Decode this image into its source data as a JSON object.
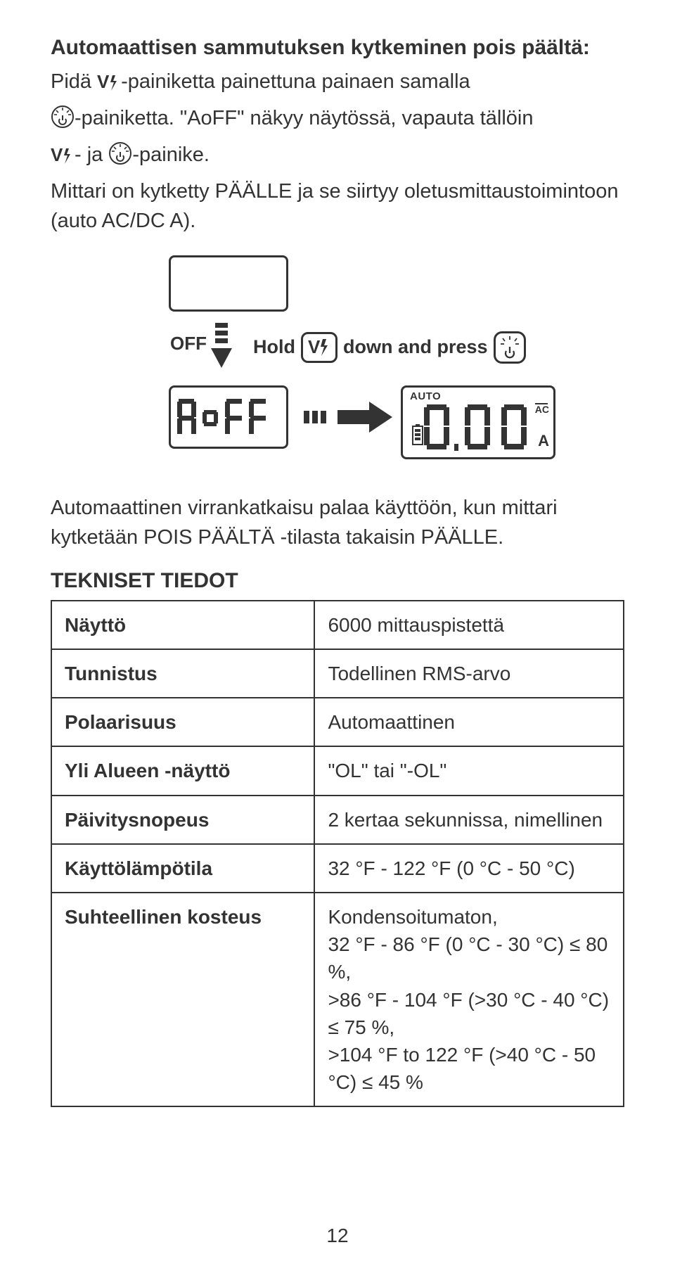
{
  "colors": {
    "text": "#333333",
    "border": "#333333",
    "background": "#ffffff"
  },
  "heading": "Automaattisen sammutuksen kytkeminen pois päältä:",
  "p1a": "Pidä ",
  "p1b": "-painiketta painettuna painaen samalla",
  "p2a": "-painiketta. \"AoFF\" näkyy näytössä, vapauta tällöin",
  "p3a": "- ja ",
  "p3b": "-painike.",
  "p4": "Mittari on kytketty PÄÄLLE ja se siirtyy oletusmittaustoimintoon (auto AC/DC A).",
  "diagram": {
    "off_label": "OFF",
    "hold": "Hold",
    "down_and_press": "down and press",
    "aoff": "AoFF",
    "auto": "AUTO",
    "ac": "AC",
    "a_unit": "A",
    "digits": "0.00"
  },
  "after_diagram": "Automaattinen virrankatkaisu palaa käyttöön, kun mittari kytketään POIS PÄÄLTÄ -tilasta takaisin PÄÄLLE.",
  "spec_title": "TEKNISET TIEDOT",
  "spec": [
    {
      "k": "Näyttö",
      "v": "6000 mittauspistettä"
    },
    {
      "k": "Tunnistus",
      "v": "Todellinen RMS-arvo"
    },
    {
      "k": "Polaarisuus",
      "v": "Automaattinen"
    },
    {
      "k": "Yli Alueen -näyttö",
      "v": "\"OL\" tai \"-OL\""
    },
    {
      "k": "Päivitysnopeus",
      "v": "2 kertaa sekunnissa, nimellinen"
    },
    {
      "k": "Käyttölämpötila",
      "v": "32 °F - 122 °F (0 °C - 50 °C)"
    },
    {
      "k": "Suhteellinen kosteus",
      "v": "Kondensoitumaton,\n32 °F - 86 °F (0 °C - 30 °C) ≤ 80 %,\n>86 °F - 104 °F (>30 °C - 40 °C) ≤ 75 %,\n>104 °F to 122 °F (>40 °C - 50 °C) ≤ 45 %"
    }
  ],
  "page": "12"
}
